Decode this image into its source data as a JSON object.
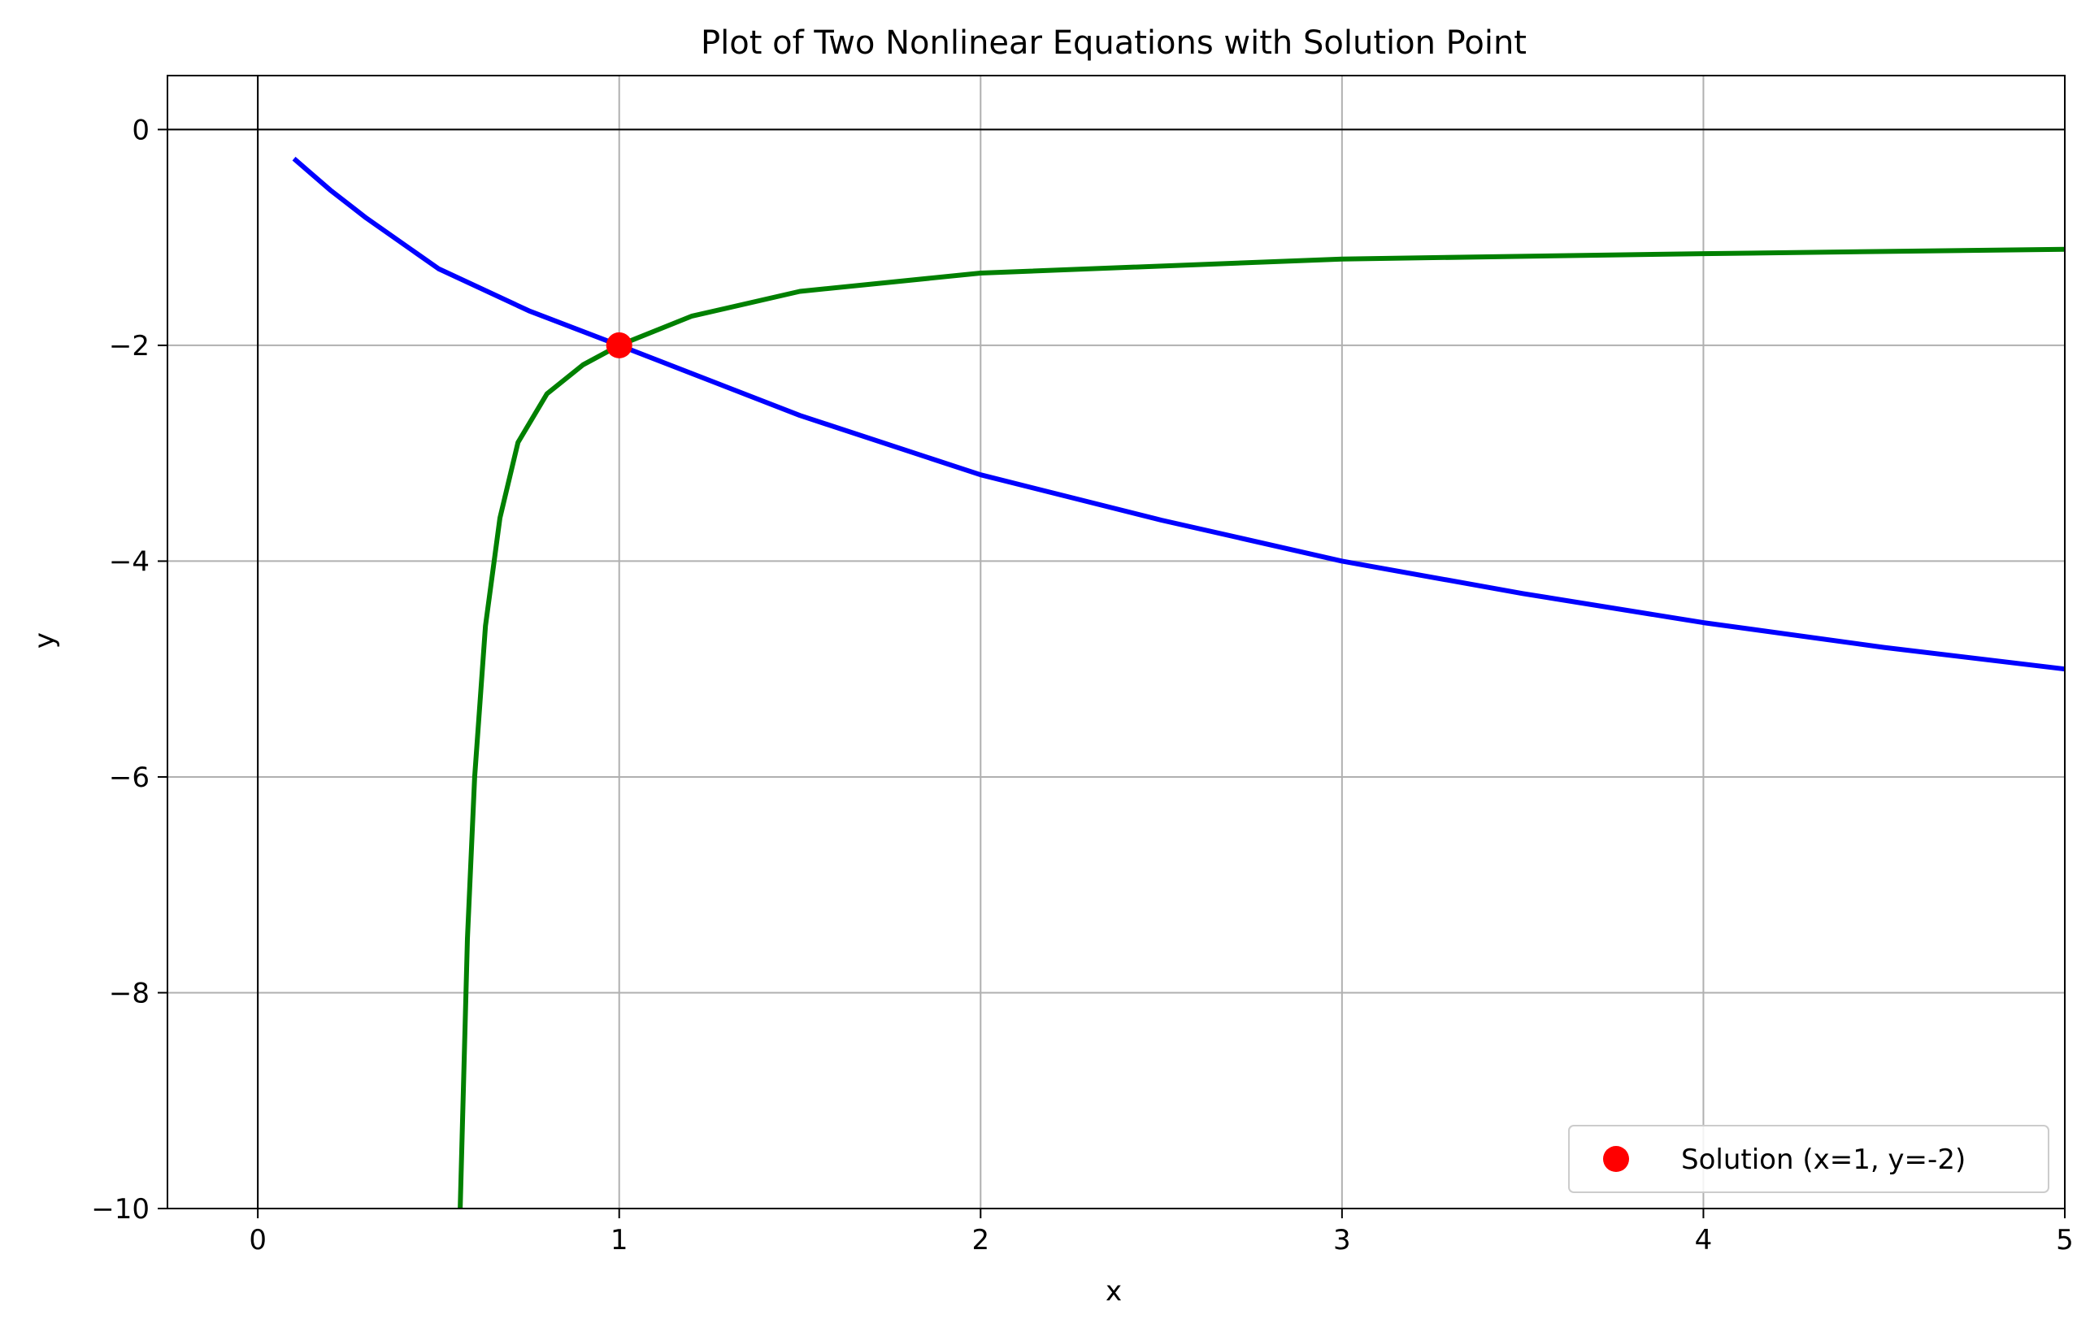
{
  "chart_data": {
    "type": "line",
    "title": "Plot of Two Nonlinear Equations with Solution Point",
    "xlabel": "x",
    "ylabel": "y",
    "xlim": [
      -0.25,
      5
    ],
    "ylim": [
      -10,
      0.5
    ],
    "xticks": [
      0,
      1,
      2,
      3,
      4,
      5
    ],
    "yticks": [
      0,
      -2,
      -4,
      -6,
      -8,
      -10
    ],
    "grid": true,
    "reference_lines": {
      "x": 0,
      "y": 0
    },
    "legend_position": "lower-right",
    "series": [
      {
        "color": "#0000ff",
        "x": [
          0.1,
          0.2,
          0.3,
          0.5,
          0.75,
          1.0,
          1.5,
          2.0,
          2.5,
          3.0,
          3.5,
          4.0,
          4.5,
          5.0
        ],
        "y": [
          -0.27,
          -0.56,
          -0.82,
          -1.29,
          -1.68,
          -2.0,
          -2.65,
          -3.2,
          -3.62,
          -4.0,
          -4.3,
          -4.57,
          -4.8,
          -5.0
        ]
      },
      {
        "color": "#008000",
        "x": [
          0.56,
          0.58,
          0.6,
          0.63,
          0.67,
          0.72,
          0.8,
          0.9,
          1.0,
          1.2,
          1.5,
          2.0,
          3.0,
          4.0,
          5.0
        ],
        "y": [
          -10.0,
          -7.5,
          -6.0,
          -4.6,
          -3.6,
          -2.9,
          -2.45,
          -2.18,
          -2.0,
          -1.73,
          -1.5,
          -1.33,
          -1.2,
          -1.15,
          -1.11
        ]
      }
    ],
    "points": [
      {
        "label": "Solution (x=1, y=-2)",
        "x": 1,
        "y": -2,
        "color": "#ff0000"
      }
    ],
    "tick_labels": {
      "x": [
        "0",
        "1",
        "2",
        "3",
        "4",
        "5"
      ],
      "y": [
        "0",
        "−2",
        "−4",
        "−6",
        "−8",
        "−10"
      ]
    }
  }
}
